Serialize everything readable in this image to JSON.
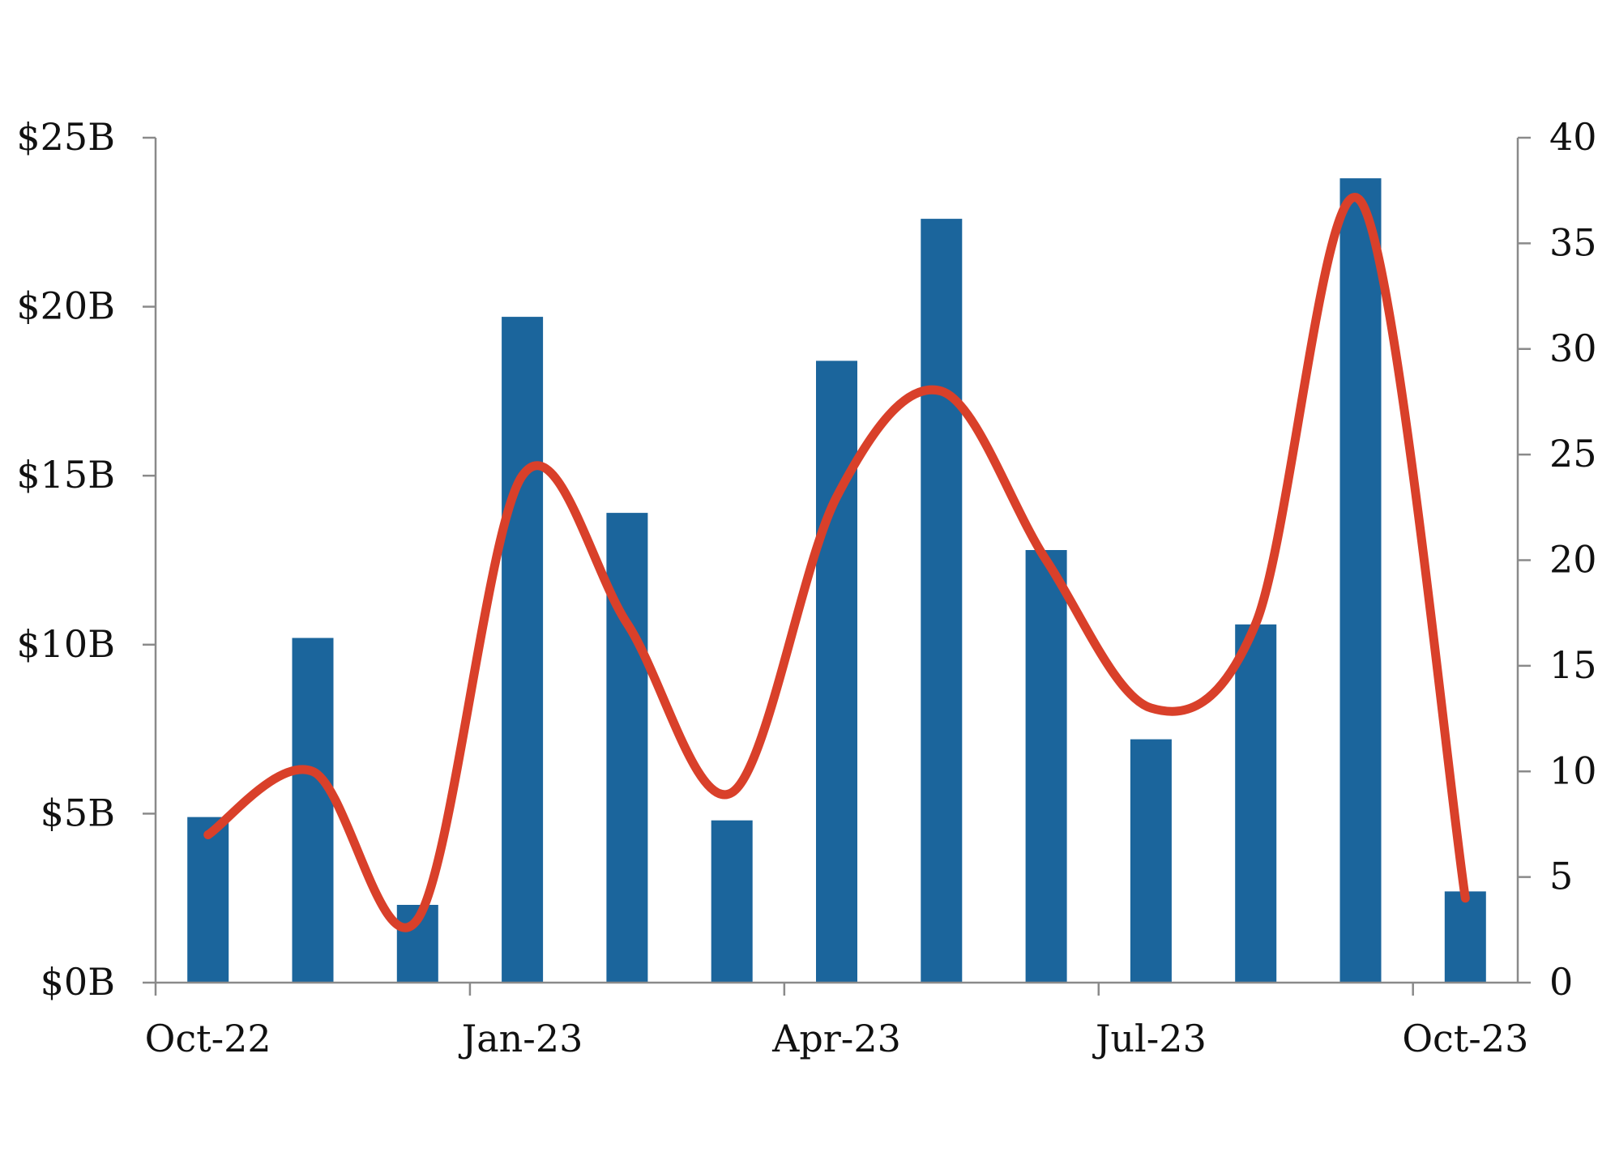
{
  "chart_data": {
    "type": "bar",
    "categories": [
      "Oct-22",
      "Nov-22",
      "Dec-22",
      "Jan-23",
      "Feb-23",
      "Mar-23",
      "Apr-23",
      "May-23",
      "Jun-23",
      "Jul-23",
      "Aug-23",
      "Sep-23",
      "Oct-23"
    ],
    "series": [
      {
        "type": "bar",
        "axis": "left",
        "color": "#1b659c",
        "values": [
          4.9,
          10.2,
          2.3,
          19.7,
          13.9,
          4.8,
          18.4,
          22.6,
          12.8,
          7.2,
          10.6,
          23.8,
          2.7
        ]
      },
      {
        "type": "line",
        "axis": "right",
        "smooth": true,
        "color": "#d9402a",
        "values": [
          7,
          10,
          3,
          24,
          17,
          9,
          23,
          28,
          20,
          13,
          17,
          37,
          4
        ]
      }
    ],
    "y_left": {
      "min": 0,
      "max": 25,
      "ticks": [
        "$0B",
        "$5B",
        "$10B",
        "$15B",
        "$20B",
        "$25B"
      ]
    },
    "y_right": {
      "min": 0,
      "max": 40,
      "ticks": [
        "0",
        "5",
        "10",
        "15",
        "20",
        "25",
        "30",
        "35",
        "40"
      ]
    },
    "x_tick_labels": [
      "Oct-22",
      "Jan-23",
      "Apr-23",
      "Jul-23",
      "Oct-23"
    ],
    "grid": false,
    "legend": "none"
  }
}
